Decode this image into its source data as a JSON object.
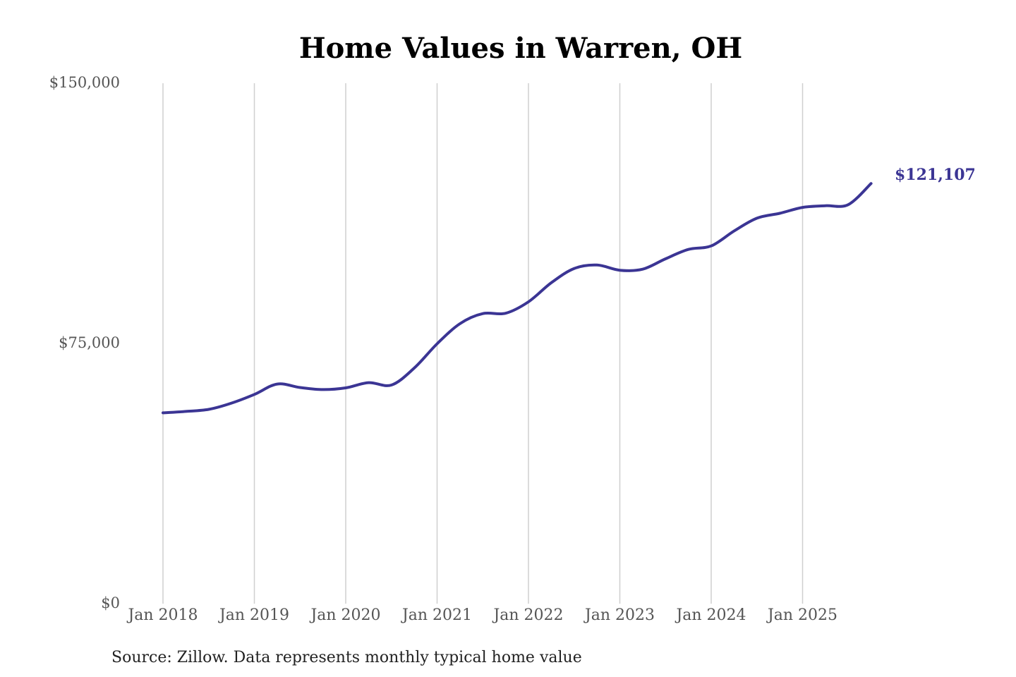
{
  "chart_data": {
    "type": "line",
    "title": "Home Values in Warren, OH",
    "source_note": "Source: Zillow. Data represents monthly typical home value",
    "ylim": [
      0,
      150000
    ],
    "y_ticks": [
      {
        "value": 0,
        "label": "$0"
      },
      {
        "value": 75000,
        "label": "$75,000"
      },
      {
        "value": 150000,
        "label": "$150,000"
      }
    ],
    "x_ticks": [
      {
        "value": "2018-01",
        "label": "Jan 2018"
      },
      {
        "value": "2019-01",
        "label": "Jan 2019"
      },
      {
        "value": "2020-01",
        "label": "Jan 2020"
      },
      {
        "value": "2021-01",
        "label": "Jan 2021"
      },
      {
        "value": "2022-01",
        "label": "Jan 2022"
      },
      {
        "value": "2023-01",
        "label": "Jan 2023"
      },
      {
        "value": "2024-01",
        "label": "Jan 2024"
      },
      {
        "value": "2025-01",
        "label": "Jan 2025"
      }
    ],
    "grid": {
      "vertical": true,
      "horizontal": false
    },
    "line_color": "#3b3594",
    "end_label": "$121,107",
    "series": [
      {
        "x": [
          "2018-01",
          "2018-04",
          "2018-07",
          "2018-10",
          "2019-01",
          "2019-04",
          "2019-07",
          "2019-10",
          "2020-01",
          "2020-04",
          "2020-07",
          "2020-10",
          "2021-01",
          "2021-04",
          "2021-07",
          "2021-10",
          "2022-01",
          "2022-04",
          "2022-07",
          "2022-10",
          "2023-01",
          "2023-04",
          "2023-07",
          "2023-10",
          "2024-01",
          "2024-04",
          "2024-07",
          "2024-10",
          "2025-01",
          "2025-04",
          "2025-07",
          "2025-10"
        ],
        "values": [
          55000,
          55400,
          56000,
          57800,
          60300,
          63300,
          62300,
          61700,
          62200,
          63700,
          63000,
          67900,
          74900,
          80700,
          83600,
          83700,
          87000,
          92500,
          96600,
          97600,
          96100,
          96400,
          99400,
          102100,
          103100,
          107400,
          111100,
          112500,
          114200,
          114700,
          115000,
          121107
        ]
      }
    ]
  }
}
